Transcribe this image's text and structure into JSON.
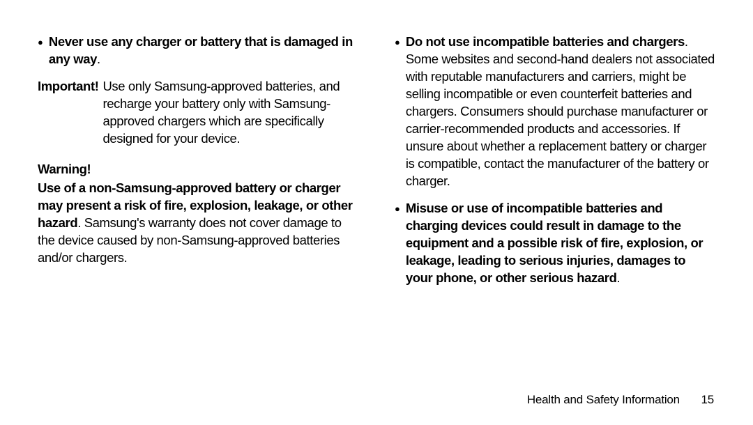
{
  "left": {
    "bullet1_bold": "Never use any charger or battery that is damaged in any way",
    "bullet1_tail": ".",
    "important_label": "Important!",
    "important_body": "Use only Samsung-approved batteries, and recharge your battery only with Samsung-approved chargers which are specifically designed for your device.",
    "warning_heading": "Warning!",
    "warning_bold": "Use of a non-Samsung-approved battery or charger may present a risk of fire, explosion, leakage, or other hazard",
    "warning_tail": ". Samsung's warranty does not cover damage to the device caused by non-Samsung-approved batteries and/or chargers."
  },
  "right": {
    "bullet1_bold": "Do not use incompatible batteries and chargers",
    "bullet1_tail": ". Some websites and second-hand dealers not associated with reputable manufacturers and carriers, might be selling incompatible or even counterfeit batteries and chargers. Consumers should purchase manufacturer or carrier-recommended products and accessories. If unsure about whether a replacement battery or charger is compatible, contact the manufacturer of the battery or charger.",
    "bullet2_bold": "Misuse or use of incompatible batteries and charging devices could result in damage to the equipment and a possible risk of fire, explosion, or leakage, leading to serious injuries, damages to your phone, or other serious hazard",
    "bullet2_tail": "."
  },
  "footer": {
    "section": "Health and Safety Information",
    "page": "15"
  }
}
